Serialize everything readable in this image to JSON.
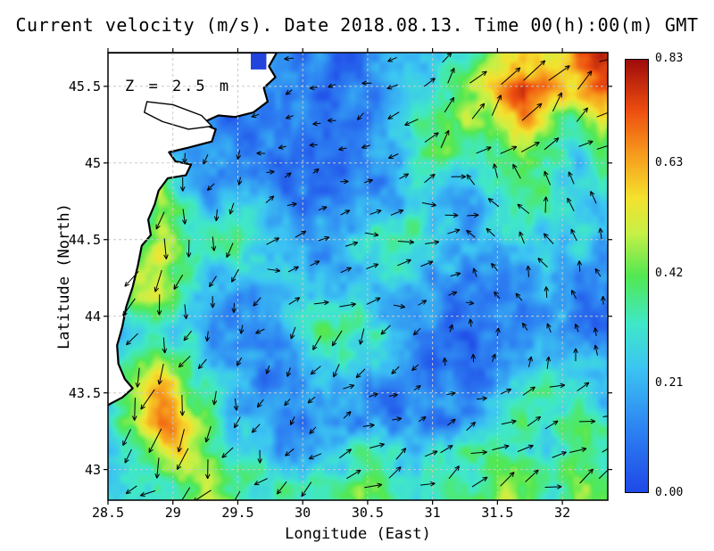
{
  "chart_data": {
    "type": "heatmap",
    "title": "Current velocity (m/s). Date 2018.08.13. Time 00(h):00(m) GMT",
    "xlabel": "Longitude (East)",
    "ylabel": "Latitude (North)",
    "annotation": "Z = 2.5 m",
    "xlim": [
      28.5,
      32.35
    ],
    "ylim": [
      42.8,
      45.72
    ],
    "x_ticks": [
      {
        "label": "28.5",
        "value": 28.5
      },
      {
        "label": "29",
        "value": 29
      },
      {
        "label": "29.5",
        "value": 29.5
      },
      {
        "label": "30",
        "value": 30
      },
      {
        "label": "30.5",
        "value": 30.5
      },
      {
        "label": "31",
        "value": 31
      },
      {
        "label": "31.5",
        "value": 31.5
      },
      {
        "label": "32",
        "value": 32
      }
    ],
    "y_ticks": [
      {
        "label": "43",
        "value": 43
      },
      {
        "label": "43.5",
        "value": 43.5
      },
      {
        "label": "44",
        "value": 44
      },
      {
        "label": "44.5",
        "value": 44.5
      },
      {
        "label": "45",
        "value": 45
      },
      {
        "label": "45.5",
        "value": 45.5
      }
    ],
    "colorbar": {
      "min": 0,
      "max": 0.83,
      "ticks": [
        {
          "label": "0.00",
          "value": 0.0
        },
        {
          "label": "0.21",
          "value": 0.21
        },
        {
          "label": "0.42",
          "value": 0.42
        },
        {
          "label": "0.63",
          "value": 0.63
        },
        {
          "label": "0.83",
          "value": 0.83
        }
      ],
      "stops": [
        [
          0.0,
          "#1f48e8"
        ],
        [
          0.15,
          "#2e84f2"
        ],
        [
          0.29,
          "#3cc6f2"
        ],
        [
          0.39,
          "#40e8c8"
        ],
        [
          0.5,
          "#52e852"
        ],
        [
          0.6,
          "#c8f046"
        ],
        [
          0.68,
          "#f4e22e"
        ],
        [
          0.78,
          "#f79c1d"
        ],
        [
          0.88,
          "#ee4f10"
        ],
        [
          1.0,
          "#9e0b0b"
        ]
      ]
    },
    "grid": {
      "lons": [
        28.5,
        28.7,
        28.9,
        29.1,
        29.3,
        29.5,
        29.7,
        29.9,
        30.1,
        30.3,
        30.5,
        30.7,
        30.9,
        31.1,
        31.3,
        31.5,
        31.7,
        31.9,
        32.1,
        32.3
      ],
      "lats": [
        45.7,
        45.5,
        45.3,
        45.1,
        44.9,
        44.7,
        44.5,
        44.3,
        44.1,
        43.9,
        43.7,
        43.5,
        43.3,
        43.1,
        42.9
      ],
      "speed": [
        [
          0.1,
          0.1,
          0.1,
          0.1,
          0.1,
          0.1,
          0.12,
          0.15,
          0.12,
          0.1,
          0.12,
          0.15,
          0.2,
          0.25,
          0.3,
          0.45,
          0.55,
          0.5,
          0.65,
          0.78
        ],
        [
          0.1,
          0.1,
          0.1,
          0.1,
          0.1,
          0.1,
          0.12,
          0.1,
          0.1,
          0.12,
          0.15,
          0.2,
          0.25,
          0.35,
          0.5,
          0.6,
          0.78,
          0.65,
          0.55,
          0.7
        ],
        [
          0.1,
          0.1,
          0.1,
          0.1,
          0.1,
          0.1,
          0.1,
          0.1,
          0.1,
          0.12,
          0.15,
          0.25,
          0.3,
          0.4,
          0.45,
          0.55,
          0.65,
          0.45,
          0.4,
          0.5
        ],
        [
          0.1,
          0.1,
          0.1,
          0.15,
          0.2,
          0.15,
          0.12,
          0.1,
          0.1,
          0.1,
          0.12,
          0.15,
          0.35,
          0.45,
          0.35,
          0.4,
          0.5,
          0.4,
          0.3,
          0.35
        ],
        [
          0.1,
          0.1,
          0.5,
          0.25,
          0.15,
          0.1,
          0.1,
          0.1,
          0.08,
          0.1,
          0.12,
          0.15,
          0.25,
          0.3,
          0.25,
          0.3,
          0.35,
          0.3,
          0.25,
          0.3
        ],
        [
          0.1,
          0.2,
          0.45,
          0.3,
          0.2,
          0.25,
          0.2,
          0.15,
          0.12,
          0.15,
          0.2,
          0.25,
          0.3,
          0.25,
          0.2,
          0.25,
          0.3,
          0.35,
          0.3,
          0.25
        ],
        [
          0.1,
          0.3,
          0.5,
          0.4,
          0.3,
          0.35,
          0.3,
          0.25,
          0.2,
          0.25,
          0.3,
          0.35,
          0.3,
          0.25,
          0.2,
          0.2,
          0.25,
          0.3,
          0.25,
          0.2
        ],
        [
          0.1,
          0.45,
          0.55,
          0.35,
          0.25,
          0.3,
          0.25,
          0.2,
          0.15,
          0.2,
          0.25,
          0.3,
          0.25,
          0.2,
          0.15,
          0.15,
          0.2,
          0.25,
          0.2,
          0.15
        ],
        [
          0.15,
          0.5,
          0.45,
          0.3,
          0.2,
          0.15,
          0.2,
          0.25,
          0.3,
          0.35,
          0.3,
          0.2,
          0.15,
          0.12,
          0.1,
          0.12,
          0.15,
          0.2,
          0.15,
          0.12
        ],
        [
          0.2,
          0.35,
          0.3,
          0.25,
          0.15,
          0.12,
          0.15,
          0.2,
          0.35,
          0.4,
          0.35,
          0.25,
          0.15,
          0.1,
          0.1,
          0.1,
          0.12,
          0.15,
          0.12,
          0.1
        ],
        [
          0.25,
          0.4,
          0.5,
          0.4,
          0.2,
          0.15,
          0.12,
          0.15,
          0.25,
          0.3,
          0.25,
          0.2,
          0.12,
          0.1,
          0.1,
          0.12,
          0.15,
          0.2,
          0.25,
          0.2
        ],
        [
          0.3,
          0.55,
          0.6,
          0.45,
          0.3,
          0.2,
          0.15,
          0.12,
          0.15,
          0.2,
          0.15,
          0.12,
          0.1,
          0.12,
          0.15,
          0.2,
          0.3,
          0.35,
          0.3,
          0.25
        ],
        [
          0.25,
          0.45,
          0.7,
          0.55,
          0.35,
          0.25,
          0.2,
          0.15,
          0.12,
          0.15,
          0.2,
          0.15,
          0.12,
          0.15,
          0.2,
          0.3,
          0.35,
          0.3,
          0.35,
          0.3
        ],
        [
          0.2,
          0.3,
          0.5,
          0.6,
          0.4,
          0.3,
          0.25,
          0.2,
          0.25,
          0.3,
          0.35,
          0.3,
          0.25,
          0.3,
          0.35,
          0.4,
          0.35,
          0.3,
          0.4,
          0.35
        ],
        [
          0.25,
          0.25,
          0.35,
          0.45,
          0.5,
          0.4,
          0.3,
          0.35,
          0.4,
          0.35,
          0.4,
          0.35,
          0.3,
          0.35,
          0.4,
          0.45,
          0.4,
          0.35,
          0.45,
          0.4
        ]
      ]
    },
    "flow_regions": [
      {
        "lon": [
          30.9,
          32.4
        ],
        "lat": [
          44.95,
          45.75
        ],
        "angle": 40
      },
      {
        "lon": [
          29.6,
          30.9
        ],
        "lat": [
          45.0,
          45.75
        ],
        "angle": 205
      },
      {
        "lon": [
          28.4,
          29.7
        ],
        "lat": [
          43.0,
          45.2
        ],
        "angle": 250
      },
      {
        "lon": [
          31.3,
          32.4
        ],
        "lat": [
          43.9,
          44.95
        ],
        "angle": 115
      },
      {
        "lon": [
          28.4,
          30.2
        ],
        "lat": [
          42.75,
          43.3
        ],
        "angle": 215
      },
      {
        "lon": [
          30.2,
          32.4
        ],
        "lat": [
          42.75,
          43.6
        ],
        "angle": 25
      },
      {
        "lon": [
          29.7,
          31.0
        ],
        "lat": [
          43.3,
          44.05
        ],
        "angle": 230
      },
      {
        "lon": [
          29.6,
          31.3
        ],
        "lat": [
          44.05,
          45.0
        ],
        "angle": 15
      }
    ],
    "coastline": [
      [
        29.8,
        45.72
      ],
      [
        29.74,
        45.63
      ],
      [
        29.79,
        45.56
      ],
      [
        29.7,
        45.49
      ],
      [
        29.73,
        45.4
      ],
      [
        29.62,
        45.33
      ],
      [
        29.48,
        45.3
      ],
      [
        29.35,
        45.31
      ],
      [
        29.22,
        45.26
      ],
      [
        29.33,
        45.22
      ],
      [
        29.3,
        45.14
      ],
      [
        29.12,
        45.1
      ],
      [
        28.97,
        45.07
      ],
      [
        29.02,
        45.01
      ],
      [
        29.14,
        44.99
      ],
      [
        29.1,
        44.92
      ],
      [
        28.96,
        44.9
      ],
      [
        28.89,
        44.82
      ],
      [
        28.86,
        44.73
      ],
      [
        28.81,
        44.63
      ],
      [
        28.83,
        44.53
      ],
      [
        28.76,
        44.46
      ],
      [
        28.73,
        44.33
      ],
      [
        28.69,
        44.19
      ],
      [
        28.64,
        44.06
      ],
      [
        28.61,
        43.93
      ],
      [
        28.57,
        43.81
      ],
      [
        28.58,
        43.69
      ],
      [
        28.63,
        43.59
      ],
      [
        28.69,
        43.53
      ],
      [
        28.61,
        43.47
      ],
      [
        28.52,
        43.43
      ],
      [
        28.46,
        43.4
      ],
      [
        28.46,
        45.72
      ]
    ],
    "lake": [
      [
        28.8,
        45.4
      ],
      [
        29.0,
        45.38
      ],
      [
        29.22,
        45.31
      ],
      [
        29.3,
        45.24
      ],
      [
        29.12,
        45.22
      ],
      [
        28.92,
        45.27
      ],
      [
        28.78,
        45.33
      ]
    ],
    "river_mouth": {
      "lon": [
        29.6,
        29.72
      ],
      "lat": [
        45.61,
        45.72
      ],
      "color": "#2244dd"
    },
    "land_color": "#ffffff",
    "coast_color": "#000000",
    "grid_line_color": "#c9c9c9",
    "arrow_color": "#000000"
  }
}
